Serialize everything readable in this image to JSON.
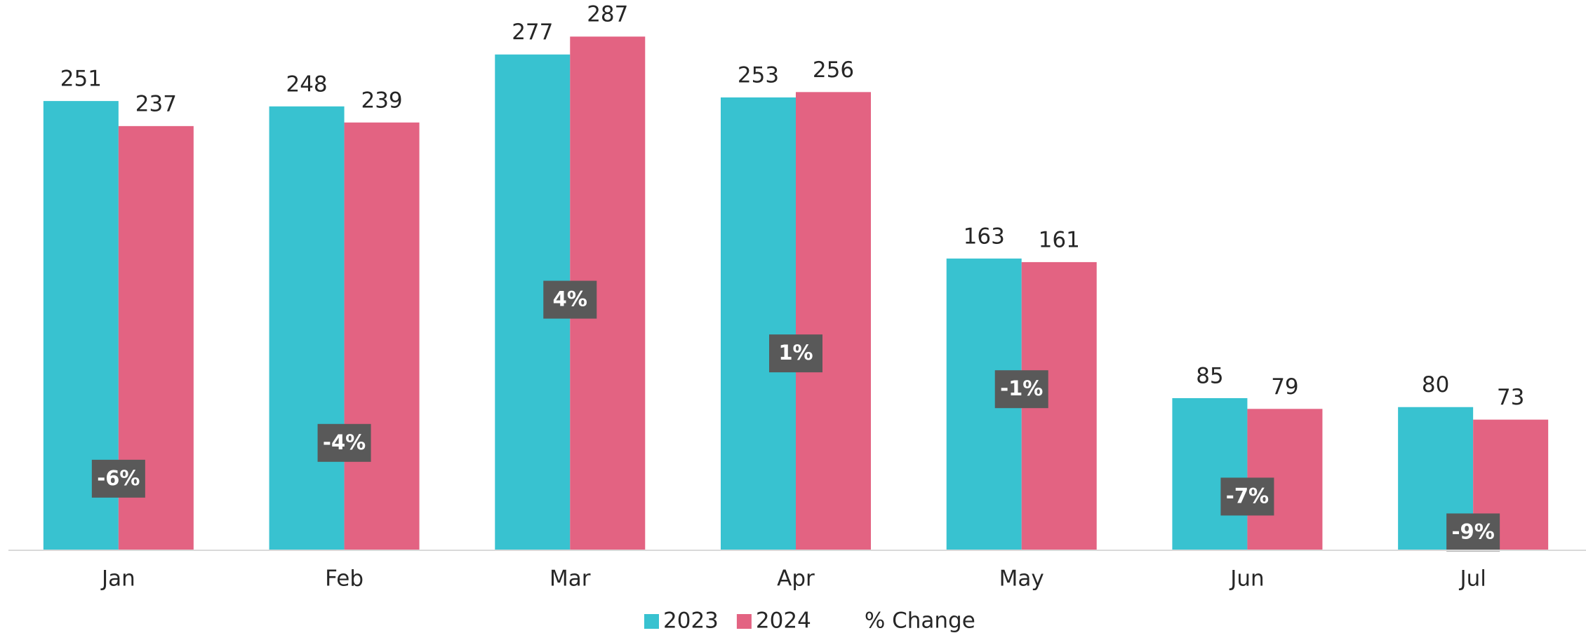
{
  "chart_data": {
    "type": "bar",
    "categories": [
      "Jan",
      "Feb",
      "Mar",
      "Apr",
      "May",
      "Jun",
      "Jul"
    ],
    "series": [
      {
        "name": "2023",
        "color": "#38c2d0",
        "values": [
          251,
          248,
          277,
          253,
          163,
          85,
          80
        ]
      },
      {
        "name": "2024",
        "color": "#e36382",
        "values": [
          237,
          239,
          287,
          256,
          161,
          79,
          73
        ]
      },
      {
        "name": "% Change",
        "color": "#595959",
        "axis": "y2",
        "values": [
          -6,
          -4,
          4,
          1,
          -1,
          -7,
          -9
        ],
        "value_labels": [
          "-6%",
          "-4%",
          "4%",
          "1%",
          "-1%",
          "-7%",
          "-9%"
        ]
      }
    ],
    "ylim": [
      0,
      300
    ],
    "y2lim": [
      -10,
      20
    ],
    "legend": "bottom"
  }
}
